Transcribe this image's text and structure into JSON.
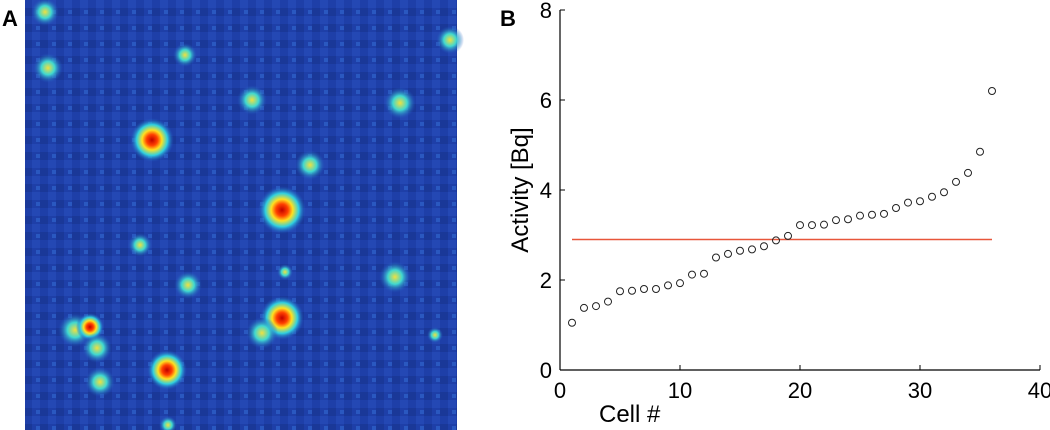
{
  "panels": [
    "A",
    "B"
  ],
  "chart_data": {
    "type": "scatter",
    "x_label": "Cell #",
    "y_label": "Activity [Bq]",
    "x": [
      1,
      2,
      3,
      4,
      5,
      6,
      7,
      8,
      9,
      10,
      11,
      12,
      13,
      14,
      15,
      16,
      17,
      18,
      19,
      20,
      21,
      22,
      23,
      24,
      25,
      26,
      27,
      28,
      29,
      30,
      31,
      32,
      33,
      34,
      35,
      36
    ],
    "values": [
      1.05,
      1.38,
      1.42,
      1.52,
      1.75,
      1.76,
      1.8,
      1.8,
      1.88,
      1.93,
      2.12,
      2.14,
      2.5,
      2.58,
      2.65,
      2.68,
      2.75,
      2.88,
      2.98,
      3.22,
      3.22,
      3.23,
      3.33,
      3.35,
      3.43,
      3.45,
      3.47,
      3.6,
      3.72,
      3.75,
      3.85,
      3.95,
      4.18,
      4.38,
      4.85,
      6.2
    ],
    "color": "#222222",
    "hline": {
      "y": 2.9,
      "x": [
        1,
        36
      ],
      "color": "#e8563a"
    },
    "xlim": [
      0,
      40
    ],
    "xticks": [
      0,
      10,
      20,
      30,
      40
    ],
    "ylim": [
      0,
      8
    ],
    "yticks": [
      0,
      2,
      4,
      6,
      8
    ],
    "grid": false
  }
}
